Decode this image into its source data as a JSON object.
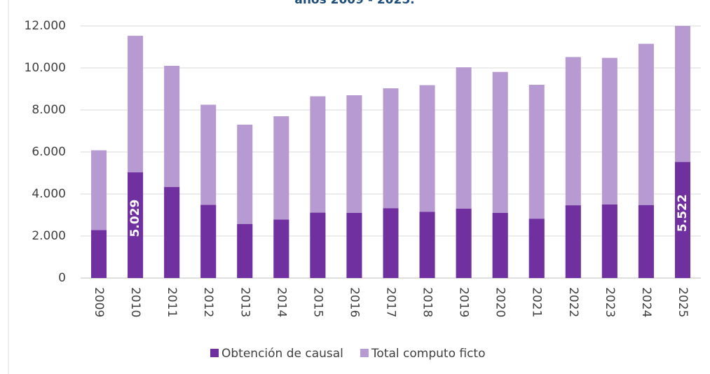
{
  "chart_data": {
    "type": "bar",
    "overlap": true,
    "title": "años 2009 - 2025.",
    "categories": [
      "2009",
      "2010",
      "2011",
      "2012",
      "2013",
      "2014",
      "2015",
      "2016",
      "2017",
      "2018",
      "2019",
      "2020",
      "2021",
      "2022",
      "2023",
      "2024",
      "2025"
    ],
    "series": [
      {
        "name": "Total computo ficto",
        "color": "#b89ad2",
        "values": [
          6080,
          11530,
          10100,
          8250,
          7300,
          7700,
          8650,
          8700,
          9030,
          9180,
          10030,
          9810,
          9200,
          10520,
          10480,
          11150,
          12000
        ]
      },
      {
        "name": "Obtención de causal",
        "color": "#7030a0",
        "values": [
          2280,
          5029,
          4330,
          3480,
          2570,
          2780,
          3110,
          3100,
          3320,
          3150,
          3300,
          3100,
          2820,
          3460,
          3500,
          3470,
          5522
        ],
        "value_labels": [
          null,
          "5.029",
          null,
          null,
          null,
          null,
          null,
          null,
          null,
          null,
          null,
          null,
          null,
          null,
          null,
          null,
          "5.522"
        ]
      }
    ],
    "legend_order": [
      1,
      0
    ],
    "ylim": [
      0,
      12000
    ],
    "yticks": [
      0,
      {
        "value": 2000,
        "label": "2.000"
      },
      {
        "value": 4000,
        "label": "4.000"
      },
      {
        "value": 6000,
        "label": "6.000"
      },
      {
        "value": 8000,
        "label": "8.000"
      },
      {
        "value": 10000,
        "label": "10.000"
      },
      {
        "value": 12000,
        "label": "12.000"
      }
    ],
    "grid": true
  }
}
